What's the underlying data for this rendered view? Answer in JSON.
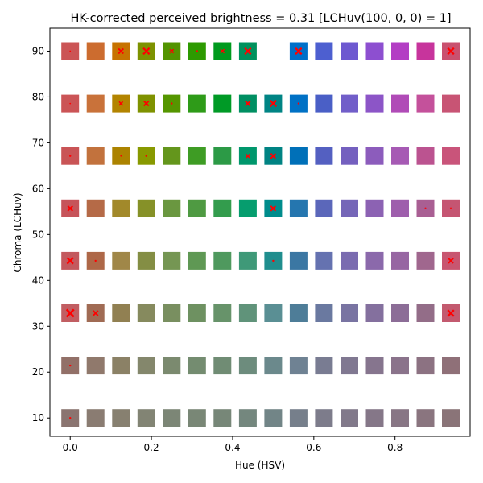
{
  "chart_data": {
    "type": "scatter",
    "title": "HK-corrected perceived brightness = 0.31 [LCHuv(100, 0, 0) = 1]",
    "xlabel": "Hue (HSV)",
    "ylabel": "Chroma (LCHuv)",
    "xlim": [
      -0.05,
      0.985
    ],
    "ylim": [
      6,
      95
    ],
    "x_ticks": [
      0.0,
      0.2,
      0.4,
      0.6,
      0.8
    ],
    "x_tick_labels": [
      "0.0",
      "0.2",
      "0.4",
      "0.6",
      "0.8"
    ],
    "y_ticks": [
      10,
      20,
      30,
      40,
      50,
      60,
      70,
      80,
      90
    ],
    "y_tick_labels": [
      "10",
      "20",
      "30",
      "40",
      "50",
      "60",
      "70",
      "80",
      "90"
    ],
    "grid": false,
    "hues": [
      0.0,
      0.0625,
      0.125,
      0.1875,
      0.25,
      0.3125,
      0.375,
      0.4375,
      0.5,
      0.5625,
      0.625,
      0.6875,
      0.75,
      0.8125,
      0.875,
      0.9375
    ],
    "chromas": [
      10.0,
      21.43,
      32.86,
      44.29,
      55.71,
      67.14,
      78.57,
      90.0
    ],
    "colors": [
      [
        "#8a7470",
        "#8a7c72",
        "#878070",
        "#828474",
        "#7c8676",
        "#798776",
        "#778778",
        "#74877e",
        "#728587",
        "#767f8b",
        "#7d7c8b",
        "#81798a",
        "#857788",
        "#887685",
        "#8a757f",
        "#8a7478"
      ],
      [
        "#927068",
        "#90796c",
        "#8b8166",
        "#84876c",
        "#7b8a6f",
        "#748c70",
        "#708c74",
        "#6d8c7d",
        "#6b898c",
        "#6f8293",
        "#797c92",
        "#807891",
        "#86758e",
        "#8a738b",
        "#8c7282",
        "#8f7078"
      ],
      [
        "#c15e62",
        "#a06b54",
        "#918052",
        "#868a5e",
        "#798f60",
        "#6e9161",
        "#67936a",
        "#60937a",
        "#5a8f94",
        "#4e7d98",
        "#6a79a0",
        "#7974a2",
        "#84709e",
        "#8c6d97",
        "#936d88",
        "#c35a6f"
      ],
      [
        "#c3595e",
        "#ae6848",
        "#a08748",
        "#848e44",
        "#759653",
        "#5f9854",
        "#4f995e",
        "#3f9978",
        "#208e8e",
        "#3b77a3",
        "#6572b0",
        "#7a6bb0",
        "#8b69ab",
        "#9766a2",
        "#a0678e",
        "#c85670"
      ],
      [
        "#c6545a",
        "#b56a47",
        "#a2892a",
        "#869128",
        "#6a9740",
        "#4f9a42",
        "#339c4d",
        "#069d6e",
        "#008c8c",
        "#2576af",
        "#5b67ba",
        "#7566b8",
        "#8c62b3",
        "#9e5eac",
        "#a95f93",
        "#c55572"
      ],
      [
        "#c95456",
        "#c2723d",
        "#ac8300",
        "#889900",
        "#64961c",
        "#3e9c24",
        "#2c9a46",
        "#00976c",
        "#008383",
        "#0070b8",
        "#5460c1",
        "#7460bf",
        "#8c5cbc",
        "#a65ab4",
        "#bb5390",
        "#c9547a"
      ],
      [
        "#cb5456",
        "#c9723a",
        "#b38400",
        "#7f9200",
        "#559600",
        "#2e9b18",
        "#009a26",
        "#008f62",
        "#008484",
        "#0071c5",
        "#4a5fc6",
        "#715ec9",
        "#8c55c7",
        "#b04bb7",
        "#c4519b",
        "#c85474"
      ],
      [
        "#cb5455",
        "#cc6c2f",
        "#c77300",
        "#7d9200",
        "#539400",
        "#2d9a00",
        "#009a1e",
        "#00915d",
        "#008484",
        "#0070c9",
        "#4d5fd0",
        "#6d58d0",
        "#8d4fd0",
        "#b33ec4",
        "#c7349c",
        "#c9516f"
      ]
    ],
    "red_markers": [
      {
        "x": 0.0,
        "y": 10.0,
        "size": 1
      },
      {
        "x": 0.0,
        "y": 21.43,
        "size": 1
      },
      {
        "x": 0.0,
        "y": 32.86,
        "size": 5
      },
      {
        "x": 0.0625,
        "y": 32.86,
        "size": 3
      },
      {
        "x": 0.9375,
        "y": 32.86,
        "size": 4
      },
      {
        "x": 0.0,
        "y": 44.29,
        "size": 4
      },
      {
        "x": 0.0625,
        "y": 44.29,
        "size": 1
      },
      {
        "x": 0.5,
        "y": 44.29,
        "size": 1
      },
      {
        "x": 0.9375,
        "y": 44.29,
        "size": 3
      },
      {
        "x": 0.0,
        "y": 55.71,
        "size": 3
      },
      {
        "x": 0.5,
        "y": 55.71,
        "size": 3
      },
      {
        "x": 0.875,
        "y": 55.71,
        "size": 1
      },
      {
        "x": 0.9375,
        "y": 55.71,
        "size": 1
      },
      {
        "x": 0.0,
        "y": 67.14,
        "size": 1
      },
      {
        "x": 0.125,
        "y": 67.14,
        "size": 0.5
      },
      {
        "x": 0.1875,
        "y": 67.14,
        "size": 1
      },
      {
        "x": 0.4375,
        "y": 67.14,
        "size": 2
      },
      {
        "x": 0.5,
        "y": 67.14,
        "size": 3
      },
      {
        "x": 0.0,
        "y": 78.57,
        "size": 0.5
      },
      {
        "x": 0.125,
        "y": 78.57,
        "size": 2
      },
      {
        "x": 0.1875,
        "y": 78.57,
        "size": 3
      },
      {
        "x": 0.25,
        "y": 78.57,
        "size": 1
      },
      {
        "x": 0.4375,
        "y": 78.57,
        "size": 3
      },
      {
        "x": 0.5,
        "y": 78.57,
        "size": 4
      },
      {
        "x": 0.5625,
        "y": 78.57,
        "size": 1
      },
      {
        "x": 0.0,
        "y": 90.0,
        "size": 0.5
      },
      {
        "x": 0.125,
        "y": 90.0,
        "size": 3
      },
      {
        "x": 0.1875,
        "y": 90.0,
        "size": 4
      },
      {
        "x": 0.25,
        "y": 90.0,
        "size": 2
      },
      {
        "x": 0.3125,
        "y": 90.0,
        "size": 1
      },
      {
        "x": 0.375,
        "y": 90.0,
        "size": 2
      },
      {
        "x": 0.4375,
        "y": 90.0,
        "size": 4
      },
      {
        "x": 0.5625,
        "y": 90.0,
        "size": 4
      },
      {
        "x": 0.9375,
        "y": 90.0,
        "size": 4
      }
    ],
    "missing_squares": [
      {
        "x": 0.5,
        "y": 90.0
      }
    ],
    "marker_color": "#ff0000"
  }
}
